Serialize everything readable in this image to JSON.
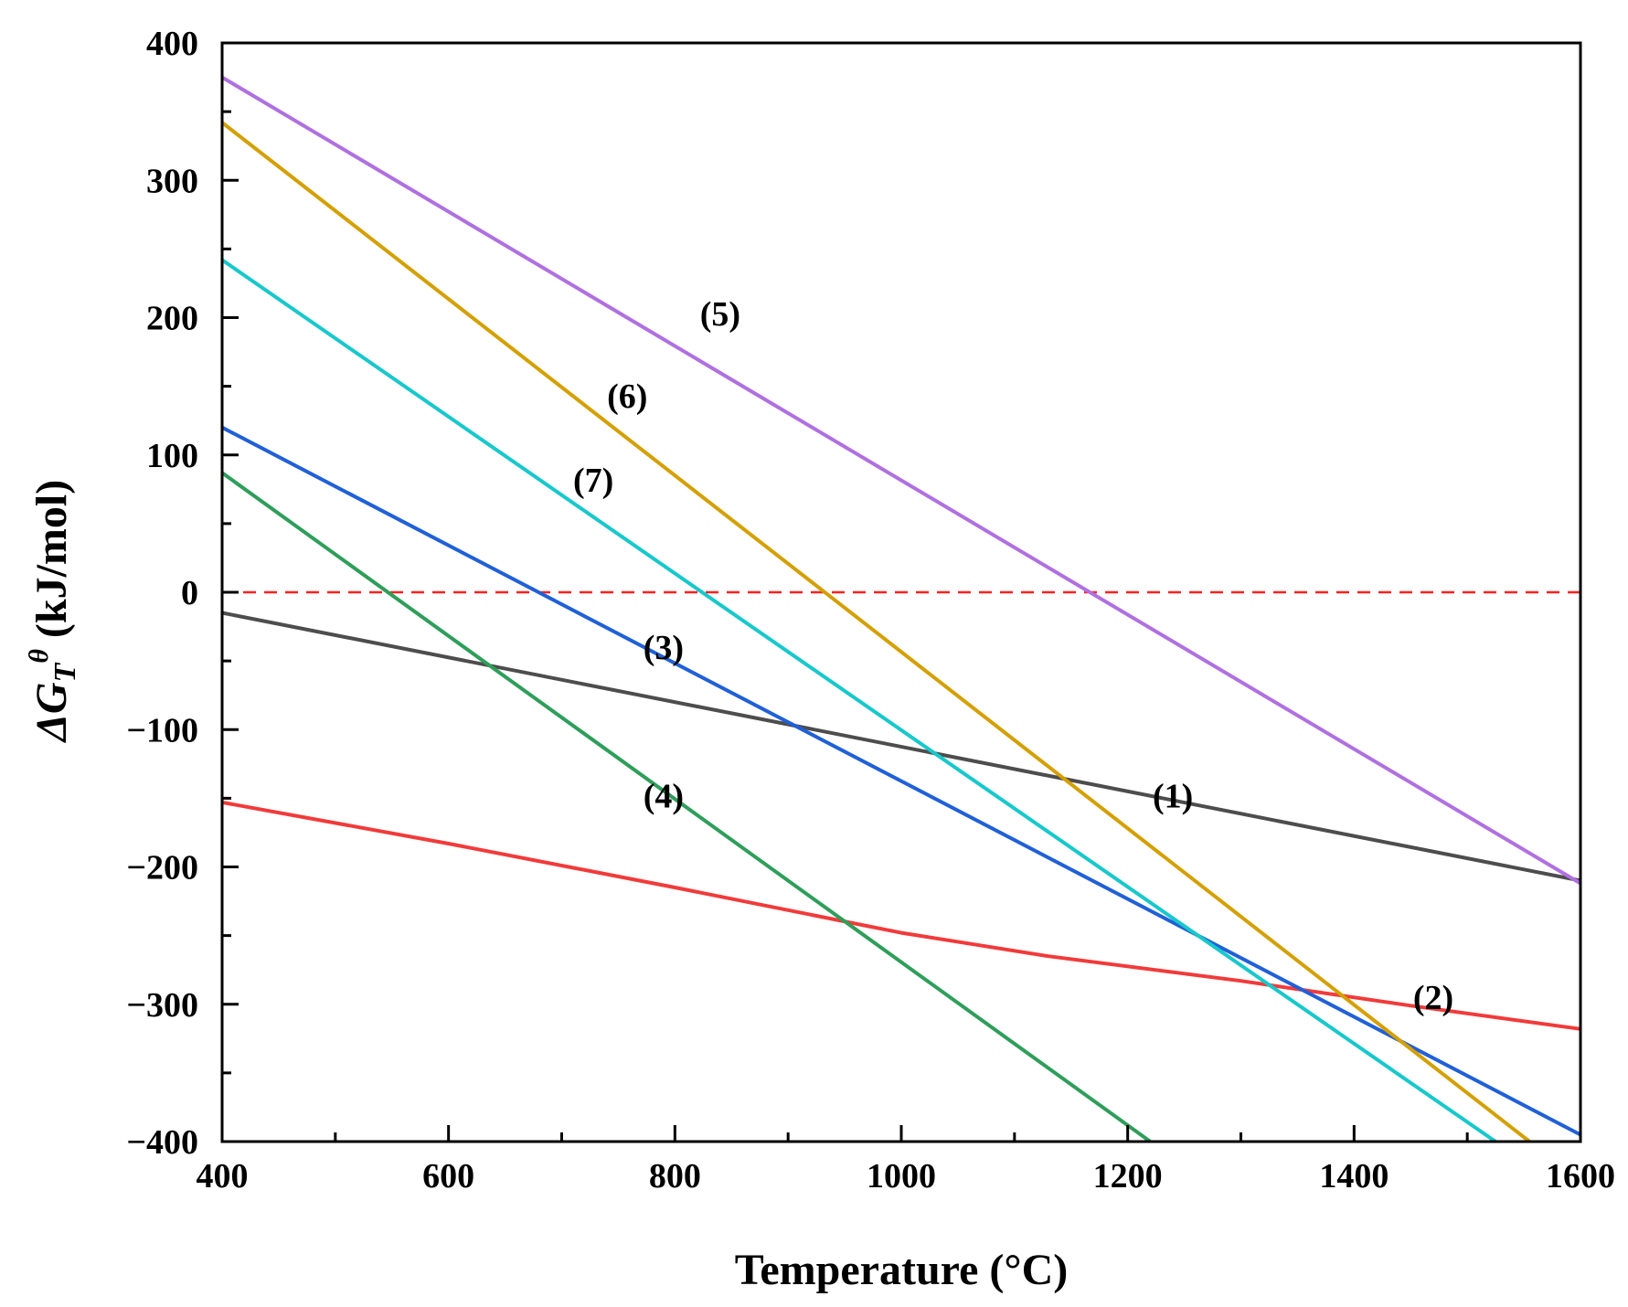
{
  "chart_data": {
    "type": "line",
    "xlabel": "Temperature (°C)",
    "ylabel": "ΔG",
    "ylabel_sub": "T",
    "ylabel_sup": "θ",
    "ylabel_units": " (kJ/mol)",
    "xlim": [
      400,
      1600
    ],
    "ylim": [
      -400,
      400
    ],
    "xticks": [
      400,
      600,
      800,
      1000,
      1200,
      1400,
      1600
    ],
    "xtick_labels": [
      "400",
      "600",
      "800",
      "1000",
      "1200",
      "1400",
      "1600"
    ],
    "yticks": [
      -400,
      -300,
      -200,
      -100,
      0,
      100,
      200,
      300,
      400
    ],
    "ytick_labels": [
      "−400",
      "−300",
      "−200",
      "−100",
      "0",
      "100",
      "200",
      "300",
      "400"
    ],
    "reference_line": {
      "y": 0,
      "style": "dashed",
      "color": "#ff2020"
    },
    "series": [
      {
        "name": "(1)",
        "color": "#4d4d4d",
        "x": [
          400,
          1600
        ],
        "y": [
          -15,
          -210
        ],
        "label_at": [
          1240,
          -148
        ]
      },
      {
        "name": "(2)",
        "color": "#f23a3a",
        "x": [
          400,
          600,
          800,
          1000,
          1130,
          1300,
          1450,
          1600
        ],
        "y": [
          -153,
          -183,
          -215,
          -248,
          -265,
          -283,
          -301,
          -318
        ],
        "label_at": [
          1470,
          -295
        ]
      },
      {
        "name": "(3)",
        "color": "#2060d8",
        "x": [
          400,
          1600
        ],
        "y": [
          120,
          -395
        ],
        "label_at": [
          790,
          -40
        ]
      },
      {
        "name": "(4)",
        "color": "#2e9e5a",
        "x": [
          400,
          1220
        ],
        "y": [
          87,
          -400
        ],
        "label_at": [
          790,
          -148
        ]
      },
      {
        "name": "(5)",
        "color": "#b070e0",
        "x": [
          400,
          1600
        ],
        "y": [
          375,
          -212
        ],
        "label_at": [
          840,
          203
        ]
      },
      {
        "name": "(6)",
        "color": "#d4a000",
        "x": [
          400,
          1555
        ],
        "y": [
          342,
          -400
        ],
        "label_at": [
          758,
          143
        ]
      },
      {
        "name": "(7)",
        "color": "#17c8cc",
        "x": [
          400,
          1525
        ],
        "y": [
          242,
          -400
        ],
        "label_at": [
          728,
          82
        ]
      }
    ]
  }
}
